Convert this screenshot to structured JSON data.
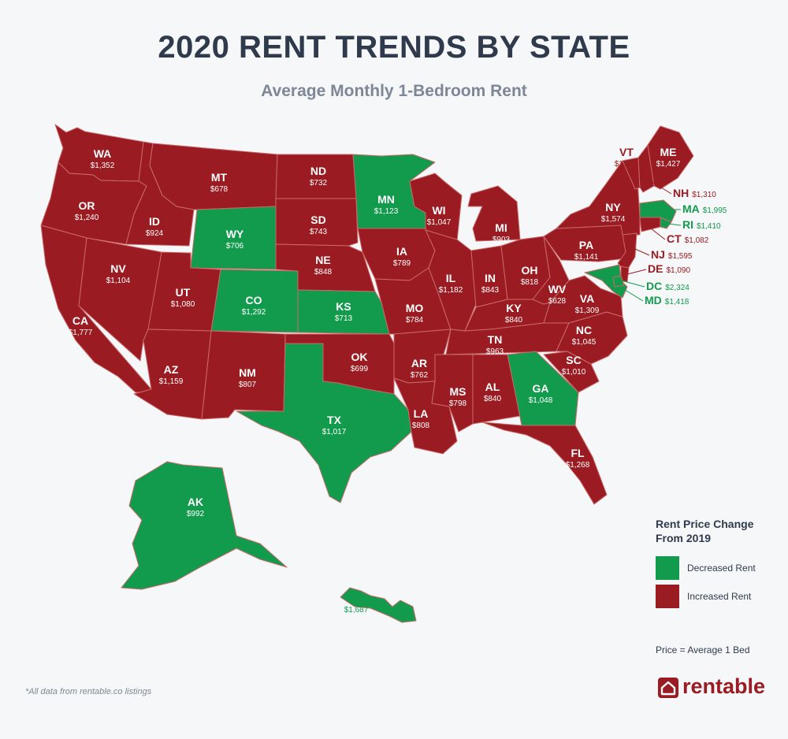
{
  "title": "2020 RENT TRENDS BY STATE",
  "subtitle": "Average Monthly 1-Bedroom Rent",
  "colors": {
    "decreased": "#129b4c",
    "increased": "#9a1b22",
    "text_dark": "#2f3b4c",
    "text_muted": "#7d8796"
  },
  "legend": {
    "title_line1": "Rent Price Change",
    "title_line2": "From 2019",
    "decreased_label": "Decreased Rent",
    "increased_label": "Increased Rent",
    "note": "Price = Average 1 Bed"
  },
  "footnote": "*All data from rentable.co listings",
  "brand": {
    "name": "rentable",
    "icon": "house-icon"
  },
  "states": [
    {
      "code": "WA",
      "price": "$1,352",
      "change": "increased"
    },
    {
      "code": "OR",
      "price": "$1,240",
      "change": "increased"
    },
    {
      "code": "CA",
      "price": "$1,777",
      "change": "increased"
    },
    {
      "code": "NV",
      "price": "$1,104",
      "change": "increased"
    },
    {
      "code": "ID",
      "price": "$924",
      "change": "increased"
    },
    {
      "code": "MT",
      "price": "$678",
      "change": "increased"
    },
    {
      "code": "WY",
      "price": "$706",
      "change": "decreased"
    },
    {
      "code": "UT",
      "price": "$1,080",
      "change": "increased"
    },
    {
      "code": "CO",
      "price": "$1,292",
      "change": "decreased"
    },
    {
      "code": "AZ",
      "price": "$1,159",
      "change": "increased"
    },
    {
      "code": "NM",
      "price": "$807",
      "change": "increased"
    },
    {
      "code": "ND",
      "price": "$732",
      "change": "increased"
    },
    {
      "code": "SD",
      "price": "$743",
      "change": "increased"
    },
    {
      "code": "NE",
      "price": "$848",
      "change": "increased"
    },
    {
      "code": "KS",
      "price": "$713",
      "change": "decreased"
    },
    {
      "code": "OK",
      "price": "$699",
      "change": "increased"
    },
    {
      "code": "TX",
      "price": "$1,017",
      "change": "decreased"
    },
    {
      "code": "MN",
      "price": "$1,123",
      "change": "decreased"
    },
    {
      "code": "IA",
      "price": "$789",
      "change": "increased"
    },
    {
      "code": "MO",
      "price": "$784",
      "change": "increased"
    },
    {
      "code": "AR",
      "price": "$762",
      "change": "increased"
    },
    {
      "code": "LA",
      "price": "$808",
      "change": "increased"
    },
    {
      "code": "WI",
      "price": "$1,047",
      "change": "increased"
    },
    {
      "code": "IL",
      "price": "$1,182",
      "change": "increased"
    },
    {
      "code": "MI",
      "price": "$903",
      "change": "increased"
    },
    {
      "code": "IN",
      "price": "$843",
      "change": "increased"
    },
    {
      "code": "OH",
      "price": "$818",
      "change": "increased"
    },
    {
      "code": "KY",
      "price": "$840",
      "change": "increased"
    },
    {
      "code": "TN",
      "price": "$963",
      "change": "increased"
    },
    {
      "code": "MS",
      "price": "$798",
      "change": "increased"
    },
    {
      "code": "AL",
      "price": "$840",
      "change": "increased"
    },
    {
      "code": "GA",
      "price": "$1,048",
      "change": "decreased"
    },
    {
      "code": "FL",
      "price": "$1,268",
      "change": "increased"
    },
    {
      "code": "SC",
      "price": "$1,010",
      "change": "increased"
    },
    {
      "code": "NC",
      "price": "$1,045",
      "change": "increased"
    },
    {
      "code": "VA",
      "price": "$1,309",
      "change": "increased"
    },
    {
      "code": "WV",
      "price": "$628",
      "change": "increased"
    },
    {
      "code": "PA",
      "price": "$1,141",
      "change": "increased"
    },
    {
      "code": "NY",
      "price": "$1,574",
      "change": "increased"
    },
    {
      "code": "VT",
      "price": "$1,284",
      "change": "increased"
    },
    {
      "code": "NH",
      "price": "$1,310",
      "change": "increased"
    },
    {
      "code": "ME",
      "price": "$1,427",
      "change": "increased"
    },
    {
      "code": "MA",
      "price": "$1,995",
      "change": "decreased"
    },
    {
      "code": "RI",
      "price": "$1,410",
      "change": "decreased"
    },
    {
      "code": "CT",
      "price": "$1,082",
      "change": "increased"
    },
    {
      "code": "NJ",
      "price": "$1,595",
      "change": "increased"
    },
    {
      "code": "DE",
      "price": "$1,090",
      "change": "increased"
    },
    {
      "code": "MD",
      "price": "$1,418",
      "change": "decreased"
    },
    {
      "code": "DC",
      "price": "$2,324",
      "change": "decreased"
    },
    {
      "code": "AK",
      "price": "$992",
      "change": "decreased"
    },
    {
      "code": "HI",
      "price": "$1,687",
      "change": "decreased"
    }
  ]
}
